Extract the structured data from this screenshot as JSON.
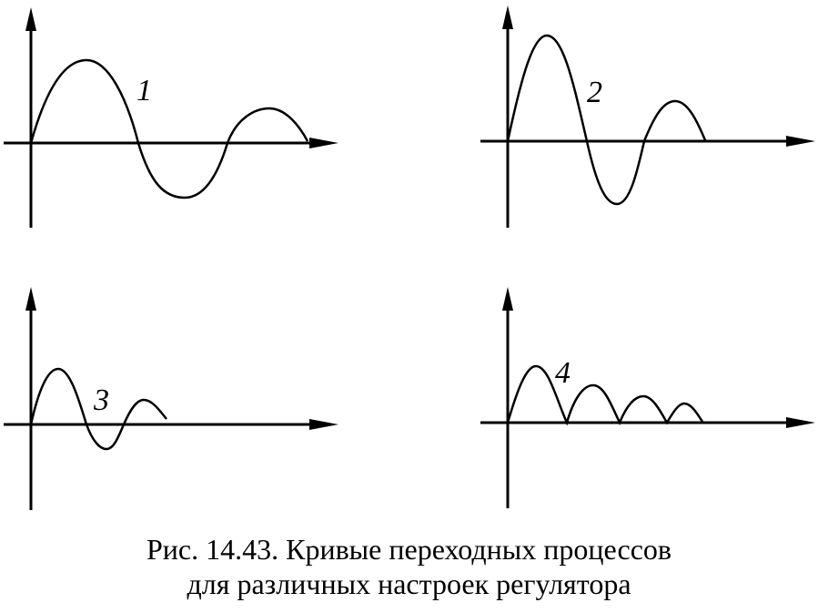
{
  "figure": {
    "panels": [
      {
        "label": "1"
      },
      {
        "label": "2"
      },
      {
        "label": "3"
      },
      {
        "label": "4"
      }
    ]
  },
  "caption": {
    "line1": "Рис. 14.43. Кривые переходных процессов",
    "line2": "для различных настроек регулятора"
  },
  "colors": {
    "ink": "#000000",
    "background": "#ffffff"
  }
}
